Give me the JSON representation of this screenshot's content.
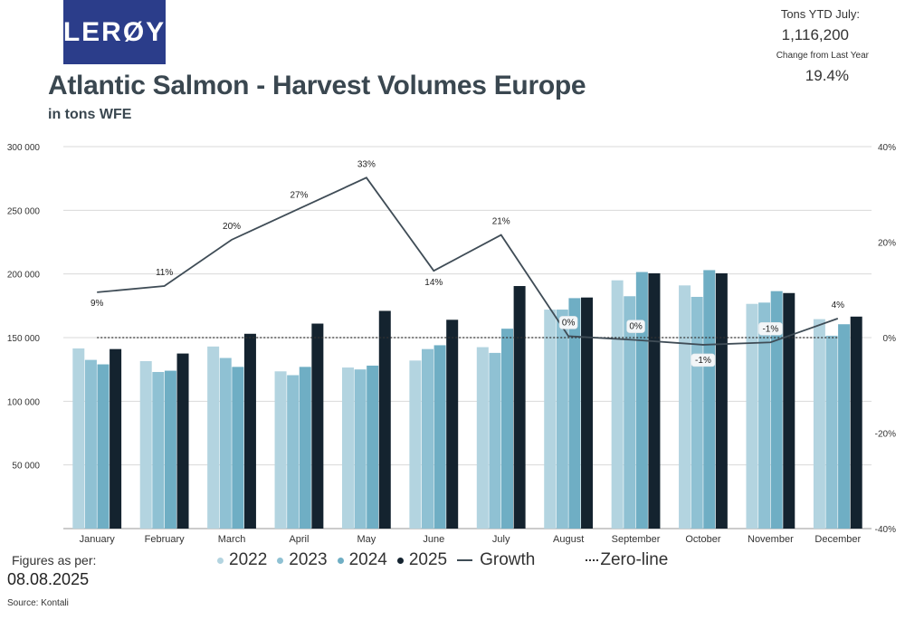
{
  "logo": {
    "text": "LERØY",
    "color": "#2b3d8a"
  },
  "header": {
    "title": "Atlantic Salmon - Harvest Volumes Europe",
    "subtitle": "in tons WFE"
  },
  "stats": {
    "ytd_label": "Tons YTD July:",
    "ytd_value": "1,116,200",
    "change_label": "Change from Last Year",
    "change_value": "19.4%"
  },
  "footer": {
    "figures_label": "Figures as per:",
    "figures_date": "08.08.2025",
    "source": "Source: Kontali"
  },
  "chart_data": {
    "type": "bar",
    "title": "Atlantic Salmon - Harvest Volumes Europe",
    "subtitle": "in tons WFE",
    "categories": [
      "January",
      "February",
      "March",
      "April",
      "May",
      "June",
      "July",
      "August",
      "September",
      "October",
      "November",
      "December"
    ],
    "series": [
      {
        "name": "2022",
        "color": "#b3d4e0",
        "values": [
          141500,
          131500,
          143000,
          123500,
          126500,
          132000,
          142500,
          172000,
          195000,
          191000,
          176500,
          164500
        ]
      },
      {
        "name": "2023",
        "color": "#8fc1d3",
        "values": [
          132500,
          123000,
          134000,
          120500,
          125000,
          141000,
          138000,
          172000,
          182500,
          182000,
          177500,
          151500
        ]
      },
      {
        "name": "2024",
        "color": "#6faec4",
        "values": [
          129000,
          124000,
          127000,
          127000,
          128000,
          144000,
          157000,
          181000,
          201500,
          203000,
          186500,
          160500
        ]
      },
      {
        "name": "2025",
        "color": "#14232f",
        "values": [
          141000,
          137500,
          153000,
          161000,
          171000,
          164000,
          190500,
          181500,
          200500,
          200500,
          185000,
          166500
        ]
      }
    ],
    "growth": {
      "name": "Growth",
      "color": "#3f4c56",
      "values": [
        9.5,
        10.8,
        20.5,
        27,
        33.5,
        14,
        21.5,
        0.3,
        -0.5,
        -1.5,
        -1,
        4
      ],
      "labels": [
        "9%",
        "11%",
        "20%",
        "27%",
        "33%",
        "14%",
        "21%",
        "0%",
        "0%",
        "-1%",
        "-1%",
        "4%"
      ]
    },
    "zero_line": {
      "name": "Zero-line"
    },
    "y_left": {
      "min": 0,
      "max": 300000,
      "ticks": [
        0,
        50000,
        100000,
        150000,
        200000,
        250000,
        300000
      ],
      "tick_labels": [
        "",
        "50 000",
        "100 000",
        "150 000",
        "200 000",
        "250 000",
        "300 000"
      ]
    },
    "y_right": {
      "min": -40,
      "max": 40,
      "ticks": [
        -40,
        -20,
        0,
        20,
        40
      ],
      "tick_labels": [
        "-40%",
        "-20%",
        "0%",
        "20%",
        "40%"
      ]
    },
    "grid": true,
    "legend_position": "bottom"
  }
}
